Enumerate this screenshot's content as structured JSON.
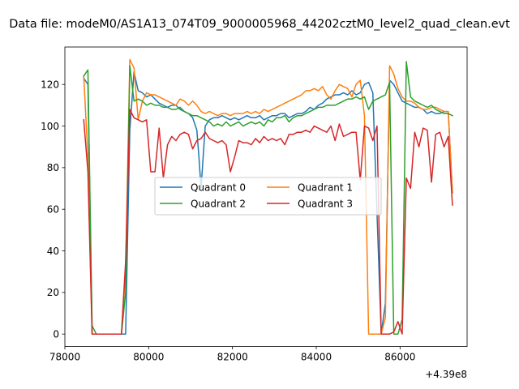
{
  "chart_data": {
    "type": "line",
    "title": "Data file: modeM0/AS1A13_074T09_9000005968_44202cztM0_level2_quad_clean.evt",
    "xlabel": "",
    "ylabel": "",
    "x_offset_label": "+4.39e8",
    "xlim": [
      78000,
      87600
    ],
    "ylim": [
      -6,
      138
    ],
    "x_ticks": [
      78000,
      80000,
      82000,
      84000,
      86000
    ],
    "x_tick_labels": [
      "78000",
      "80000",
      "82000",
      "84000",
      "86000"
    ],
    "y_ticks": [
      0,
      20,
      40,
      60,
      80,
      100,
      120
    ],
    "y_tick_labels": [
      "0",
      "20",
      "40",
      "60",
      "80",
      "100",
      "120"
    ],
    "grid": false,
    "legend": {
      "placement": "center",
      "columns": 2
    },
    "series": [
      {
        "name": "Quadrant 0",
        "color": "#1f77b4",
        "x": [
          78450,
          78550,
          78650,
          78750,
          79350,
          79450,
          79550,
          79650,
          79750,
          79850,
          79950,
          80050,
          80150,
          80250,
          80350,
          80450,
          80550,
          80650,
          80750,
          80850,
          80950,
          81050,
          81150,
          81200,
          81250,
          81350,
          81450,
          81550,
          81650,
          81750,
          81850,
          81950,
          82050,
          82150,
          82250,
          82350,
          82450,
          82550,
          82650,
          82750,
          82850,
          82950,
          83050,
          83150,
          83250,
          83350,
          83450,
          83550,
          83650,
          83750,
          83850,
          83950,
          84050,
          84150,
          84250,
          84350,
          84450,
          84550,
          84650,
          84750,
          84850,
          84950,
          85050,
          85150,
          85250,
          85350,
          85550,
          85650,
          85750,
          85850,
          85950,
          86050,
          86150,
          86250,
          86350,
          86450,
          86550,
          86650,
          86750,
          86850,
          86950,
          87050,
          87150,
          87250
        ],
        "values": [
          123,
          120,
          0,
          0,
          0,
          0,
          98,
          126,
          117,
          116,
          114,
          115,
          113,
          111,
          110,
          109,
          110,
          110,
          108,
          107,
          106,
          104,
          98,
          85,
          70,
          100,
          103,
          104,
          104,
          105,
          104,
          103,
          104,
          103,
          104,
          105,
          104,
          104,
          105,
          103,
          104,
          105,
          105,
          106,
          106,
          104,
          105,
          106,
          106,
          107,
          109,
          108,
          110,
          111,
          113,
          114,
          115,
          115,
          116,
          115,
          117,
          115,
          116,
          120,
          121,
          116,
          0,
          15,
          122,
          120,
          116,
          112,
          111,
          110,
          109,
          109,
          108,
          106,
          107,
          106,
          106,
          107,
          107,
          68
        ]
      },
      {
        "name": "Quadrant 1",
        "color": "#ff7f0e",
        "x": [
          78450,
          78550,
          78650,
          78750,
          79350,
          79450,
          79550,
          79650,
          79750,
          79850,
          79950,
          80050,
          80150,
          80250,
          80350,
          80450,
          80550,
          80650,
          80750,
          80850,
          80950,
          81050,
          81150,
          81250,
          81350,
          81450,
          81550,
          81650,
          81750,
          81850,
          81950,
          82050,
          82150,
          82250,
          82350,
          82450,
          82550,
          82650,
          82750,
          82850,
          82950,
          83050,
          83150,
          83250,
          83350,
          83450,
          83550,
          83650,
          83750,
          83850,
          83950,
          84050,
          84150,
          84250,
          84350,
          84450,
          84550,
          84650,
          84750,
          84850,
          84950,
          85050,
          85150,
          85250,
          85350,
          85450,
          85550,
          85650,
          85750,
          85850,
          85950,
          86050,
          86150,
          86250,
          86350,
          86450,
          86550,
          86650,
          86750,
          86850,
          86950,
          87050,
          87150,
          87250
        ],
        "values": [
          124,
          85,
          0,
          0,
          0,
          30,
          132,
          128,
          103,
          112,
          116,
          115,
          115,
          114,
          113,
          112,
          111,
          110,
          113,
          112,
          110,
          112,
          110,
          107,
          106,
          107,
          106,
          105,
          106,
          106,
          105,
          106,
          106,
          106,
          107,
          106,
          107,
          106,
          108,
          107,
          108,
          109,
          110,
          111,
          112,
          113,
          114,
          115,
          117,
          117,
          118,
          117,
          119,
          115,
          113,
          117,
          120,
          119,
          118,
          114,
          120,
          122,
          105,
          0,
          0,
          0,
          0,
          8,
          129,
          125,
          118,
          114,
          112,
          112,
          111,
          109,
          108,
          108,
          109,
          109,
          108,
          107,
          107,
          68
        ]
      },
      {
        "name": "Quadrant 2",
        "color": "#2ca02c",
        "x": [
          78450,
          78550,
          78650,
          78750,
          79350,
          79450,
          79550,
          79650,
          79750,
          79850,
          79950,
          80050,
          80150,
          80250,
          80350,
          80450,
          80550,
          80650,
          80750,
          80850,
          80950,
          81050,
          81150,
          81250,
          81350,
          81450,
          81550,
          81650,
          81750,
          81850,
          81950,
          82050,
          82150,
          82250,
          82350,
          82450,
          82550,
          82650,
          82750,
          82850,
          82950,
          83050,
          83150,
          83250,
          83350,
          83450,
          83550,
          83650,
          83750,
          83850,
          83950,
          84050,
          84150,
          84250,
          84350,
          84450,
          84550,
          84650,
          84750,
          84850,
          84950,
          85050,
          85150,
          85250,
          85350,
          85450,
          85550,
          85650,
          85750,
          85850,
          85950,
          86050,
          86150,
          86250,
          86350,
          86450,
          86550,
          86650,
          86750,
          86850,
          86950,
          87050,
          87150,
          87250
        ],
        "values": [
          124,
          127,
          4,
          0,
          0,
          20,
          129,
          112,
          113,
          112,
          110,
          111,
          110,
          110,
          109,
          109,
          108,
          108,
          109,
          107,
          106,
          105,
          105,
          104,
          103,
          102,
          100,
          101,
          100,
          102,
          100,
          101,
          102,
          100,
          101,
          102,
          101,
          102,
          100,
          103,
          102,
          104,
          104,
          105,
          102,
          104,
          105,
          105,
          106,
          107,
          108,
          109,
          109,
          110,
          110,
          110,
          111,
          112,
          113,
          113,
          114,
          113,
          114,
          108,
          112,
          113,
          114,
          115,
          121,
          0,
          0,
          7,
          131,
          114,
          112,
          111,
          110,
          109,
          110,
          108,
          107,
          106,
          106,
          105
        ]
      },
      {
        "name": "Quadrant 3",
        "color": "#d62728",
        "x": [
          78450,
          78550,
          78650,
          78750,
          79350,
          79450,
          79550,
          79650,
          79750,
          79850,
          79950,
          80050,
          80150,
          80250,
          80350,
          80450,
          80550,
          80650,
          80750,
          80850,
          80950,
          81050,
          81150,
          81250,
          81350,
          81450,
          81550,
          81650,
          81750,
          81850,
          81950,
          82050,
          82150,
          82250,
          82350,
          82450,
          82550,
          82650,
          82750,
          82850,
          82950,
          83050,
          83150,
          83250,
          83350,
          83450,
          83550,
          83650,
          83750,
          83850,
          83950,
          84050,
          84150,
          84250,
          84350,
          84450,
          84550,
          84650,
          84750,
          84850,
          84950,
          85050,
          85150,
          85250,
          85350,
          85450,
          85550,
          85650,
          85750,
          85850,
          85950,
          86050,
          86150,
          86250,
          86350,
          86450,
          86550,
          86650,
          86750,
          86850,
          86950,
          87050,
          87150,
          87250
        ],
        "values": [
          103,
          78,
          0,
          0,
          0,
          35,
          108,
          104,
          103,
          102,
          103,
          78,
          78,
          99,
          75,
          91,
          95,
          93,
          96,
          97,
          96,
          89,
          93,
          94,
          97,
          94,
          93,
          92,
          93,
          91,
          78,
          85,
          93,
          92,
          92,
          91,
          94,
          92,
          95,
          93,
          94,
          93,
          94,
          91,
          96,
          96,
          97,
          97,
          98,
          97,
          100,
          99,
          98,
          97,
          100,
          93,
          101,
          95,
          96,
          97,
          97,
          74,
          100,
          99,
          93,
          100,
          0,
          0,
          0,
          1,
          6,
          0,
          75,
          70,
          97,
          90,
          99,
          98,
          73,
          96,
          97,
          90,
          95,
          62
        ]
      }
    ]
  }
}
